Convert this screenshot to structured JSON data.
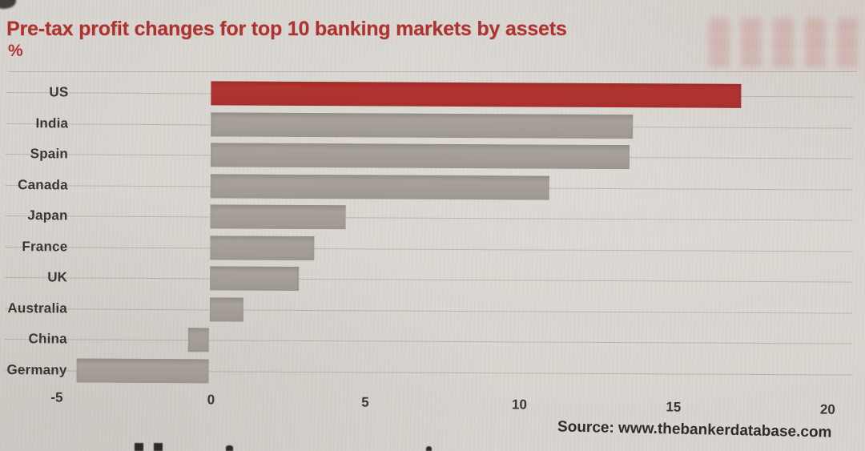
{
  "page": {
    "title": "Pre-tax profit changes for top 10 banking markets by assets",
    "unit_label": "%",
    "source": "Source: www.thebankerdatabase.com"
  },
  "colors": {
    "background": "#d8d4cf",
    "title_red": "#b0322e",
    "bar_red": "#b23431",
    "bar_gray": "#a7a19a",
    "label_dark": "#3b3633",
    "gridline": "rgba(125,118,110,0.32)"
  },
  "chart_data": {
    "type": "bar",
    "orientation": "horizontal",
    "title": "Pre-tax profit changes for top 10 banking markets by assets",
    "xlabel": "%",
    "ylabel": "",
    "categories": [
      "US",
      "India",
      "Spain",
      "Canada",
      "Japan",
      "France",
      "UK",
      "Australia",
      "China",
      "Germany"
    ],
    "values": [
      17.2,
      13.7,
      13.6,
      11.0,
      4.4,
      3.4,
      2.9,
      1.1,
      -0.7,
      -4.3
    ],
    "highlight_category": "US",
    "xlim": [
      -5,
      20
    ],
    "x_ticks": [
      -5,
      0,
      5,
      10,
      15,
      20
    ],
    "grid": "faint horizontal line through each category row",
    "legend": "none",
    "source": "Source: www.thebankerdatabase.com"
  }
}
